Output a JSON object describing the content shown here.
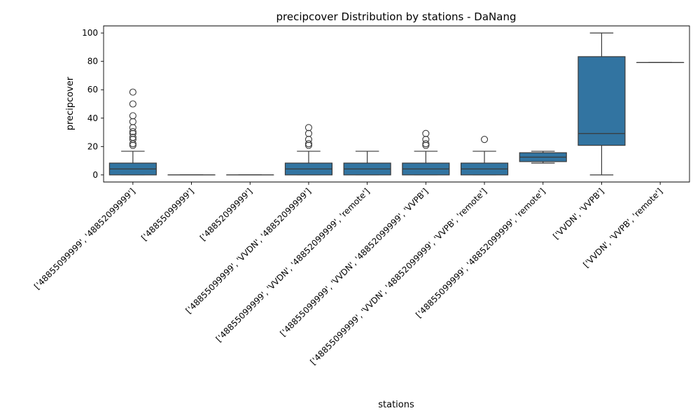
{
  "chart_data": {
    "type": "box",
    "title": "precipcover Distribution by stations - DaNang",
    "xlabel": "stations",
    "ylabel": "precipcover",
    "ylim": [
      -5,
      105
    ],
    "yticks": [
      0,
      20,
      40,
      60,
      80,
      100
    ],
    "box_color": "#3274a1",
    "line_color": "#3a3a3a",
    "categories": [
      "['48855099999', '48852099999']",
      "['48855099999']",
      "['48852099999']",
      "['48855099999', 'VVDN', '48852099999']",
      "['48855099999', 'VVDN', '48852099999', 'remote']",
      "['48855099999', 'VVDN', '48852099999', 'VVPB']",
      "['48855099999', 'VVDN', '48852099999', 'VVPB', 'remote']",
      "['48855099999', '48852099999', 'remote']",
      "['VVDN', 'VVPB']",
      "['VVDN', 'VVPB', 'remote']"
    ],
    "boxes": [
      {
        "whislo": 0,
        "q1": 0,
        "med": 4.17,
        "q3": 8.33,
        "whishi": 16.67,
        "fliers": [
          20.83,
          22.0,
          25.0,
          26.5,
          29.17,
          30.5,
          33.33,
          37.5,
          41.67,
          50.0,
          58.33
        ]
      },
      {
        "whislo": 0,
        "q1": 0,
        "med": 0,
        "q3": 0,
        "whishi": 0,
        "fliers": []
      },
      {
        "whislo": 0,
        "q1": 0,
        "med": 0,
        "q3": 0,
        "whishi": 0,
        "fliers": []
      },
      {
        "whislo": 0,
        "q1": 0,
        "med": 4.17,
        "q3": 8.33,
        "whishi": 16.67,
        "fliers": [
          20.83,
          22.0,
          25.0,
          29.17,
          33.33
        ]
      },
      {
        "whislo": 0,
        "q1": 0,
        "med": 4.17,
        "q3": 8.33,
        "whishi": 16.67,
        "fliers": []
      },
      {
        "whislo": 0,
        "q1": 0,
        "med": 4.17,
        "q3": 8.33,
        "whishi": 16.67,
        "fliers": [
          20.83,
          22.0,
          25.0,
          29.17
        ]
      },
      {
        "whislo": 0,
        "q1": 0,
        "med": 4.17,
        "q3": 8.33,
        "whishi": 16.67,
        "fliers": [
          25.0
        ]
      },
      {
        "whislo": 8.33,
        "q1": 9.38,
        "med": 12.5,
        "q3": 15.63,
        "whishi": 16.67,
        "fliers": []
      },
      {
        "whislo": 0,
        "q1": 20.83,
        "med": 29.17,
        "q3": 83.33,
        "whishi": 100,
        "fliers": []
      },
      {
        "whislo": 79.17,
        "q1": 79.17,
        "med": 79.17,
        "q3": 79.17,
        "whishi": 79.17,
        "fliers": []
      }
    ]
  }
}
